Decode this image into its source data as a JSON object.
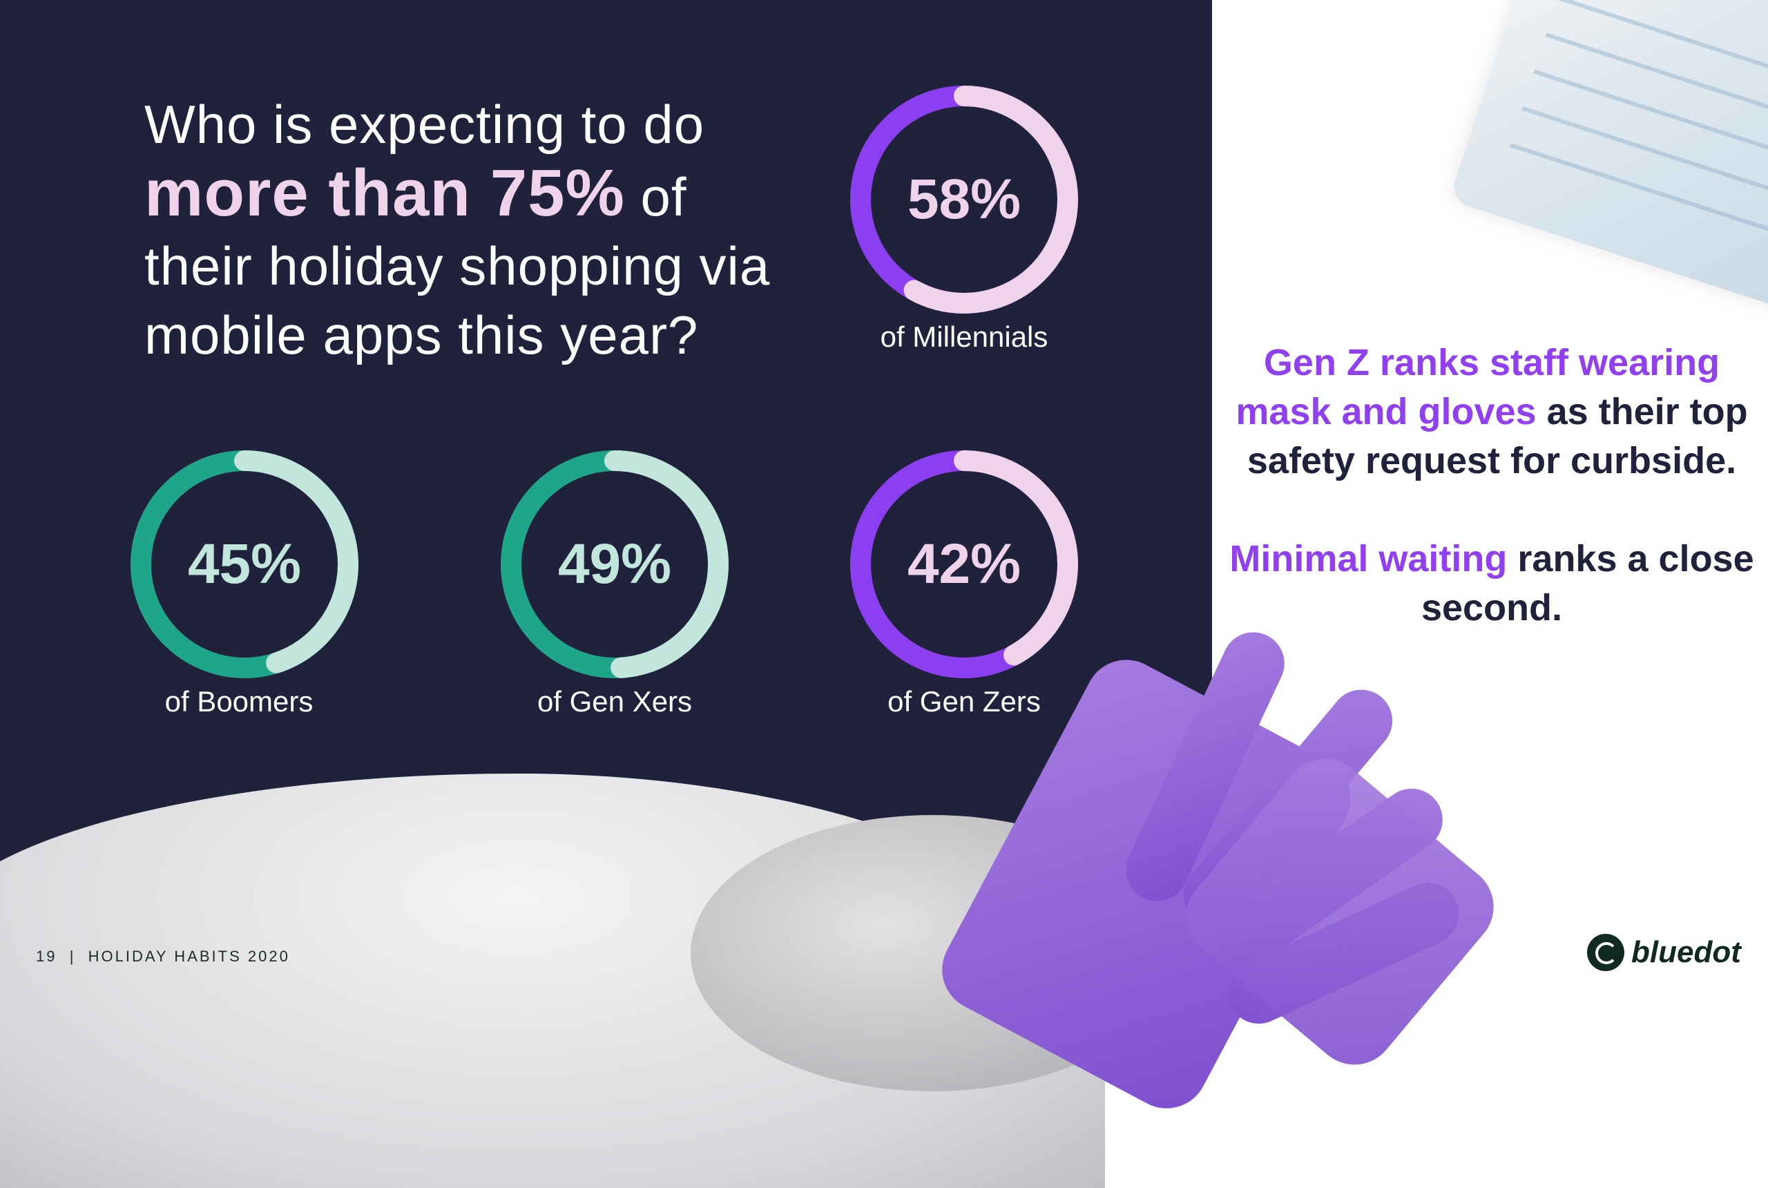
{
  "title": {
    "line1": "Who is expecting to do",
    "bold": "more than 75%",
    "after_bold": " of",
    "line3": "their holiday shopping via",
    "line4": "mobile apps this year?"
  },
  "chart_data": {
    "type": "pie",
    "subtype": "donut",
    "title": "Who is expecting to do more than 75% of their holiday shopping via mobile apps this year?",
    "categories": [
      "Millennials",
      "Boomers",
      "Gen Xers",
      "Gen Zers"
    ],
    "values": [
      58,
      45,
      49,
      42
    ],
    "items": [
      {
        "value": 58,
        "label": "58%",
        "caption": "of Millennials",
        "fg": "#efd3ea",
        "bg": "#8c3ff0"
      },
      {
        "value": 45,
        "label": "45%",
        "caption": "of Boomers",
        "fg": "#c2e6dc",
        "bg": "#1fa58a"
      },
      {
        "value": 49,
        "label": "49%",
        "caption": "of Gen Xers",
        "fg": "#c2e6dc",
        "bg": "#1fa58a"
      },
      {
        "value": 42,
        "label": "42%",
        "caption": "of Gen Zers",
        "fg": "#efd3ea",
        "bg": "#8c3ff0"
      }
    ]
  },
  "right": {
    "p1_hl": "Gen Z ranks staff wearing mask and gloves",
    "p1_rest": " as their top safety request for curbside.",
    "p2_hl": "Minimal waiting",
    "p2_rest": " ranks a close second."
  },
  "footer": {
    "text": "19  |  HOLIDAY HABITS 2020"
  },
  "logo": {
    "text": "bluedot"
  }
}
